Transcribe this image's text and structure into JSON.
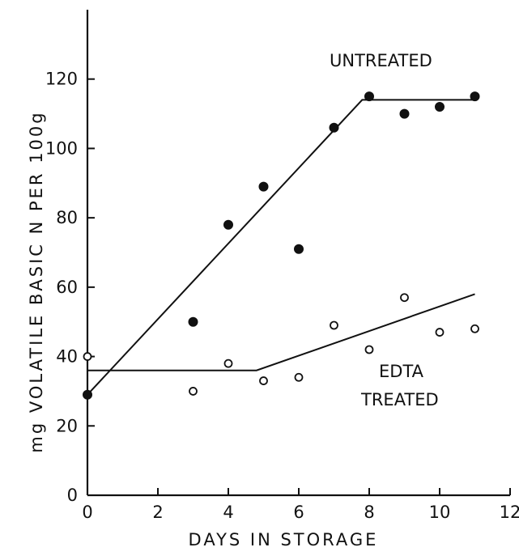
{
  "chart_data": {
    "type": "scatter",
    "xlabel": "DAYS IN STORAGE",
    "ylabel": "mg VOLATILE BASIC N PER 100g",
    "xlim": [
      0,
      12
    ],
    "ylim": [
      0,
      140
    ],
    "xticks": [
      0,
      2,
      4,
      6,
      8,
      10,
      12
    ],
    "yticks": [
      0,
      20,
      40,
      60,
      80,
      100,
      120
    ],
    "xtick_labels": [
      "0",
      "2",
      "4",
      "6",
      "8",
      "10",
      "12"
    ],
    "ytick_labels": [
      "0",
      "20",
      "40",
      "60",
      "80",
      "100",
      "120"
    ],
    "grid": false,
    "series": [
      {
        "name": "UNTREATED",
        "marker": "filled-circle",
        "x": [
          0,
          3,
          4,
          5,
          6,
          7,
          8,
          9,
          10,
          11
        ],
        "y": [
          29,
          50,
          78,
          89,
          71,
          106,
          115,
          110,
          112,
          115
        ],
        "trend_x": [
          0,
          7.8,
          11
        ],
        "trend_y": [
          29,
          114,
          114
        ]
      },
      {
        "name": "EDTA TREATED",
        "marker": "open-circle",
        "x": [
          0,
          3,
          4,
          5,
          6,
          7,
          8,
          9,
          10,
          11
        ],
        "y": [
          40,
          30,
          38,
          33,
          34,
          49,
          42,
          57,
          47,
          48
        ],
        "trend_x": [
          0,
          4.8,
          11
        ],
        "trend_y": [
          36,
          36,
          58
        ]
      }
    ],
    "annotations": [
      {
        "text": "UNTREATED"
      },
      {
        "text": "EDTA"
      },
      {
        "text": "TREATED"
      }
    ]
  }
}
